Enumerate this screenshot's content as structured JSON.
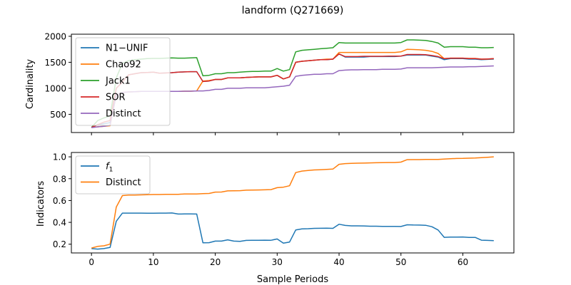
{
  "figure": {
    "title": "landform (Q271669)"
  },
  "chart_data": [
    {
      "type": "line",
      "ylabel": "Cardinality",
      "xlabel": "",
      "xlim": [
        -3.25,
        68.25
      ],
      "ylim": [
        150,
        2040
      ],
      "xticks": [
        0,
        10,
        20,
        30,
        40,
        50,
        60
      ],
      "yticks": [
        500,
        1000,
        1500,
        2000
      ],
      "grid": false,
      "legend_position": "upper left",
      "series": [
        {
          "name": "N1−UNIF",
          "color": "#1f77b4",
          "x": [
            0,
            1,
            2,
            3,
            4,
            5,
            6,
            7,
            8,
            9,
            10,
            11,
            12,
            13,
            14,
            15,
            16,
            17,
            18,
            19,
            20,
            21,
            22,
            23,
            24,
            25,
            26,
            27,
            28,
            29,
            30,
            31,
            32,
            33,
            34,
            35,
            36,
            37,
            38,
            39,
            40,
            41,
            42,
            43,
            44,
            45,
            46,
            47,
            48,
            49,
            50,
            51,
            52,
            53,
            54,
            55,
            56,
            57,
            58,
            59,
            60,
            61,
            62,
            63,
            64,
            65
          ],
          "y": [
            250,
            300,
            320,
            340,
            1000,
            1120,
            1260,
            1280,
            1300,
            1305,
            1310,
            1290,
            1295,
            1300,
            1310,
            1315,
            1320,
            1320,
            1130,
            1140,
            1170,
            1170,
            1200,
            1200,
            1200,
            1210,
            1215,
            1220,
            1220,
            1220,
            1250,
            1180,
            1220,
            1500,
            1520,
            1530,
            1540,
            1550,
            1550,
            1560,
            1660,
            1600,
            1600,
            1600,
            1600,
            1610,
            1610,
            1610,
            1610,
            1610,
            1620,
            1640,
            1640,
            1640,
            1640,
            1620,
            1600,
            1550,
            1570,
            1570,
            1570,
            1560,
            1560,
            1550,
            1555,
            1560
          ]
        },
        {
          "name": "Chao92",
          "color": "#ff7f0e",
          "x": [
            0,
            1,
            2,
            3,
            4,
            5,
            6,
            7,
            8,
            9,
            10,
            11,
            12,
            13,
            14,
            15,
            16,
            17,
            18,
            19,
            20,
            21,
            22,
            23,
            24,
            25,
            26,
            27,
            28,
            29,
            30,
            31,
            32,
            33,
            34,
            35,
            36,
            37,
            38,
            39,
            40,
            41,
            42,
            43,
            44,
            45,
            46,
            47,
            48,
            49,
            50,
            51,
            52,
            53,
            54,
            55,
            56,
            57,
            58,
            59,
            60,
            61,
            62,
            63,
            64,
            65
          ],
          "y": [
            250,
            260,
            270,
            280,
            870,
            920,
            930,
            935,
            940,
            940,
            940,
            940,
            940,
            940,
            940,
            945,
            945,
            950,
            1140,
            1150,
            1170,
            1170,
            1200,
            1200,
            1200,
            1210,
            1215,
            1220,
            1220,
            1220,
            1250,
            1180,
            1220,
            1500,
            1520,
            1530,
            1540,
            1550,
            1560,
            1560,
            1690,
            1690,
            1690,
            1690,
            1690,
            1690,
            1690,
            1690,
            1690,
            1690,
            1700,
            1750,
            1745,
            1740,
            1730,
            1710,
            1670,
            1570,
            1580,
            1580,
            1580,
            1575,
            1575,
            1560,
            1560,
            1570
          ]
        },
        {
          "name": "Jack1",
          "color": "#2ca02c",
          "x": [
            0,
            1,
            2,
            3,
            4,
            5,
            6,
            7,
            8,
            9,
            10,
            11,
            12,
            13,
            14,
            15,
            16,
            17,
            18,
            19,
            20,
            21,
            22,
            23,
            24,
            25,
            26,
            27,
            28,
            29,
            30,
            31,
            32,
            33,
            34,
            35,
            36,
            37,
            38,
            39,
            40,
            41,
            42,
            43,
            44,
            45,
            46,
            47,
            48,
            49,
            50,
            51,
            52,
            53,
            54,
            55,
            56,
            57,
            58,
            59,
            60,
            61,
            62,
            63,
            64,
            65
          ],
          "y": [
            250,
            380,
            430,
            470,
            1200,
            1480,
            1530,
            1550,
            1560,
            1570,
            1575,
            1575,
            1580,
            1585,
            1580,
            1580,
            1585,
            1590,
            1240,
            1250,
            1280,
            1280,
            1300,
            1300,
            1310,
            1320,
            1325,
            1325,
            1330,
            1330,
            1380,
            1330,
            1360,
            1700,
            1730,
            1740,
            1750,
            1760,
            1770,
            1780,
            1880,
            1870,
            1870,
            1870,
            1870,
            1870,
            1870,
            1870,
            1870,
            1870,
            1880,
            1930,
            1930,
            1925,
            1920,
            1900,
            1870,
            1790,
            1800,
            1800,
            1800,
            1790,
            1790,
            1780,
            1780,
            1785
          ]
        },
        {
          "name": "SOR",
          "color": "#d62728",
          "x": [
            0,
            1,
            2,
            3,
            4,
            5,
            6,
            7,
            8,
            9,
            10,
            11,
            12,
            13,
            14,
            15,
            16,
            17,
            18,
            19,
            20,
            21,
            22,
            23,
            24,
            25,
            26,
            27,
            28,
            29,
            30,
            31,
            32,
            33,
            34,
            35,
            36,
            37,
            38,
            39,
            40,
            41,
            42,
            43,
            44,
            45,
            46,
            47,
            48,
            49,
            50,
            51,
            52,
            53,
            54,
            55,
            56,
            57,
            58,
            59,
            60,
            61,
            62,
            63,
            64,
            65
          ],
          "y": [
            250,
            300,
            350,
            380,
            1000,
            1120,
            1260,
            1280,
            1300,
            1305,
            1310,
            1290,
            1295,
            1300,
            1310,
            1315,
            1320,
            1320,
            1130,
            1140,
            1170,
            1170,
            1200,
            1200,
            1200,
            1210,
            1215,
            1220,
            1220,
            1220,
            1250,
            1180,
            1220,
            1500,
            1520,
            1530,
            1540,
            1550,
            1550,
            1560,
            1660,
            1610,
            1610,
            1610,
            1615,
            1615,
            1615,
            1615,
            1620,
            1620,
            1620,
            1650,
            1650,
            1650,
            1645,
            1630,
            1610,
            1570,
            1580,
            1580,
            1580,
            1570,
            1570,
            1560,
            1565,
            1570
          ]
        },
        {
          "name": "Distinct",
          "color": "#9467bd",
          "x": [
            0,
            1,
            2,
            3,
            4,
            5,
            6,
            7,
            8,
            9,
            10,
            11,
            12,
            13,
            14,
            15,
            16,
            17,
            18,
            19,
            20,
            21,
            22,
            23,
            24,
            25,
            26,
            27,
            28,
            29,
            30,
            31,
            32,
            33,
            34,
            35,
            36,
            37,
            38,
            39,
            40,
            41,
            42,
            43,
            44,
            45,
            46,
            47,
            48,
            49,
            50,
            51,
            52,
            53,
            54,
            55,
            56,
            57,
            58,
            59,
            60,
            61,
            62,
            63,
            64,
            65
          ],
          "y": [
            245,
            260,
            270,
            290,
            870,
            920,
            930,
            935,
            940,
            940,
            940,
            940,
            940,
            940,
            940,
            945,
            945,
            950,
            950,
            960,
            980,
            980,
            1000,
            1000,
            1000,
            1010,
            1010,
            1010,
            1010,
            1020,
            1030,
            1040,
            1060,
            1230,
            1250,
            1260,
            1270,
            1270,
            1280,
            1280,
            1340,
            1350,
            1355,
            1355,
            1360,
            1360,
            1360,
            1365,
            1365,
            1365,
            1370,
            1395,
            1395,
            1395,
            1395,
            1395,
            1400,
            1405,
            1410,
            1410,
            1410,
            1415,
            1415,
            1420,
            1425,
            1430
          ]
        }
      ]
    },
    {
      "type": "line",
      "ylabel": "Indicators",
      "xlabel": "Sample Periods",
      "xlim": [
        -3.25,
        68.25
      ],
      "ylim": [
        0.12,
        1.04
      ],
      "xticks": [
        0,
        10,
        20,
        30,
        40,
        50,
        60
      ],
      "xticklabels": [
        "0",
        "10",
        "20",
        "30",
        "40",
        "50",
        "60"
      ],
      "yticks": [
        0.2,
        0.4,
        0.6,
        0.8,
        1.0
      ],
      "yticklabels": [
        "0.2",
        "0.4",
        "0.6",
        "0.8",
        "1.0"
      ],
      "grid": false,
      "legend_position": "upper left",
      "series": [
        {
          "name": "f1",
          "color": "#1f77b4",
          "x": [
            0,
            1,
            2,
            3,
            4,
            5,
            6,
            7,
            8,
            9,
            10,
            11,
            12,
            13,
            14,
            15,
            16,
            17,
            18,
            19,
            20,
            21,
            22,
            23,
            24,
            25,
            26,
            27,
            28,
            29,
            30,
            31,
            32,
            33,
            34,
            35,
            36,
            37,
            38,
            39,
            40,
            41,
            42,
            43,
            44,
            45,
            46,
            47,
            48,
            49,
            50,
            51,
            52,
            53,
            54,
            55,
            56,
            57,
            58,
            59,
            60,
            61,
            62,
            63,
            64,
            65
          ],
          "y": [
            0.16,
            0.155,
            0.16,
            0.17,
            0.41,
            0.485,
            0.485,
            0.485,
            0.485,
            0.484,
            0.484,
            0.485,
            0.485,
            0.486,
            0.476,
            0.477,
            0.477,
            0.476,
            0.213,
            0.214,
            0.228,
            0.228,
            0.24,
            0.228,
            0.226,
            0.235,
            0.236,
            0.236,
            0.237,
            0.236,
            0.248,
            0.21,
            0.22,
            0.33,
            0.34,
            0.342,
            0.345,
            0.346,
            0.347,
            0.345,
            0.383,
            0.372,
            0.368,
            0.368,
            0.367,
            0.365,
            0.365,
            0.363,
            0.363,
            0.363,
            0.362,
            0.378,
            0.376,
            0.375,
            0.373,
            0.36,
            0.33,
            0.263,
            0.265,
            0.265,
            0.266,
            0.262,
            0.262,
            0.237,
            0.235,
            0.233
          ]
        },
        {
          "name": "Distinct",
          "color": "#ff7f0e",
          "x": [
            0,
            1,
            2,
            3,
            4,
            5,
            6,
            7,
            8,
            9,
            10,
            11,
            12,
            13,
            14,
            15,
            16,
            17,
            18,
            19,
            20,
            21,
            22,
            23,
            24,
            25,
            26,
            27,
            28,
            29,
            30,
            31,
            32,
            33,
            34,
            35,
            36,
            37,
            38,
            39,
            40,
            41,
            42,
            43,
            44,
            45,
            46,
            47,
            48,
            49,
            50,
            51,
            52,
            53,
            54,
            55,
            56,
            57,
            58,
            59,
            60,
            61,
            62,
            63,
            64,
            65
          ],
          "y": [
            0.165,
            0.18,
            0.185,
            0.2,
            0.54,
            0.645,
            0.65,
            0.65,
            0.652,
            0.653,
            0.655,
            0.655,
            0.657,
            0.657,
            0.657,
            0.66,
            0.66,
            0.66,
            0.663,
            0.665,
            0.677,
            0.678,
            0.688,
            0.689,
            0.69,
            0.695,
            0.696,
            0.697,
            0.698,
            0.7,
            0.718,
            0.722,
            0.735,
            0.856,
            0.87,
            0.875,
            0.88,
            0.882,
            0.885,
            0.888,
            0.932,
            0.938,
            0.94,
            0.942,
            0.943,
            0.945,
            0.946,
            0.947,
            0.948,
            0.948,
            0.952,
            0.974,
            0.975,
            0.975,
            0.976,
            0.977,
            0.977,
            0.98,
            0.983,
            0.985,
            0.986,
            0.988,
            0.99,
            0.993,
            0.996,
            1.0
          ]
        }
      ]
    }
  ]
}
